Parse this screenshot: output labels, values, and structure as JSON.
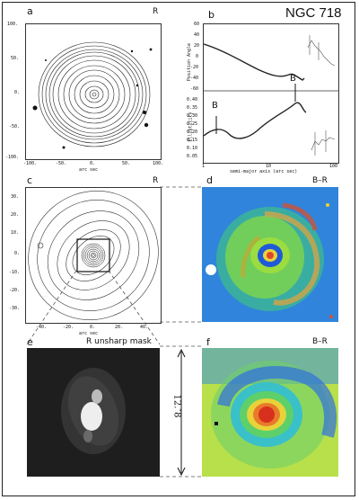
{
  "figure": {
    "title": "NGC 718",
    "panels": {
      "a": {
        "letter": "a",
        "band": "R",
        "xlabel": "arc sec",
        "xticks": [
          "-100.",
          "-50.",
          "0.",
          "50.",
          "100."
        ],
        "yticks": [
          "100.",
          "50.",
          "0.",
          "-50.",
          "-100."
        ]
      },
      "b": {
        "letter": "b",
        "top_ylabel": "Position Angle",
        "top_yticks": [
          "60",
          "40",
          "20",
          "0",
          "-20",
          "-40",
          "-60"
        ],
        "bot_ylabel": "Ellipticity",
        "bot_yticks": [
          "0.40",
          "0.35",
          "0.30",
          "0.25",
          "0.20",
          "0.15",
          "0.10",
          "0.05"
        ],
        "xlabel": "semi-major axis (arc sec)",
        "xticks": [
          "1",
          "10",
          "100"
        ],
        "bar_marks": [
          "B",
          "B"
        ]
      },
      "c": {
        "letter": "c",
        "band": "R",
        "xlabel": "arc sec",
        "xticks": [
          "-40.",
          "-20.",
          "0.",
          "20.",
          "40."
        ],
        "yticks": [
          "30.",
          "20.",
          "10.",
          "0.",
          "-10.",
          "-20.",
          "-30."
        ]
      },
      "d": {
        "letter": "d",
        "band": "B–R"
      },
      "e": {
        "letter": "e",
        "band": "R unsharp mask"
      },
      "f": {
        "letter": "f",
        "band": "B–R"
      },
      "scale": {
        "label": "12.″8"
      }
    }
  }
}
